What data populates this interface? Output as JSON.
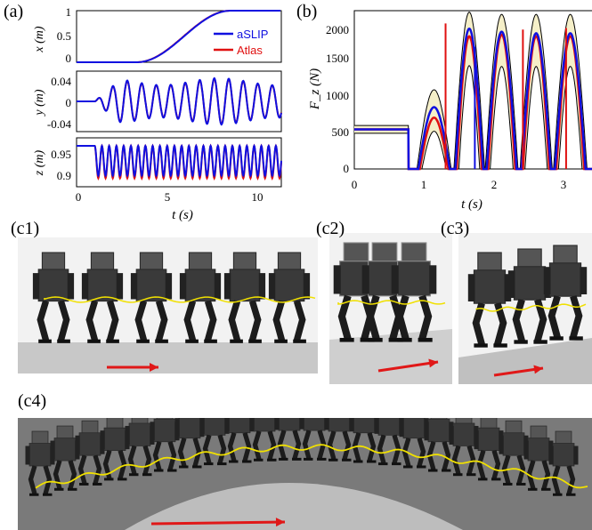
{
  "labels": {
    "a": "(a)",
    "b": "(b)",
    "c1": "(c1)",
    "c2": "(c2)",
    "c3": "(c3)",
    "c4": "(c4)"
  },
  "colors": {
    "aslip": "#1010e0",
    "atlas": "#e01010",
    "band": "#f5efc8",
    "trajectory": "#f0e000",
    "arrow": "#e01818"
  },
  "chart_data": [
    {
      "type": "line",
      "panel": "a-x",
      "ylabel": "x (m)",
      "ylim": [
        0,
        1
      ],
      "yticks": [
        "0",
        "0.5",
        "1"
      ],
      "xlim": [
        0,
        11.3
      ],
      "series": [
        {
          "name": "aSLIP",
          "x": [
            0,
            3.3,
            4,
            5,
            6,
            7,
            8,
            9,
            11.3
          ],
          "values": [
            0,
            0,
            0.12,
            0.42,
            0.72,
            0.92,
            0.99,
            1.0,
            1.0
          ]
        },
        {
          "name": "Atlas",
          "x": [
            0,
            3.3,
            4,
            5,
            6,
            7,
            8,
            9,
            11.3
          ],
          "values": [
            0,
            0,
            0.11,
            0.41,
            0.71,
            0.91,
            0.99,
            1.0,
            1.0
          ]
        }
      ],
      "legend": [
        "aSLIP",
        "Atlas"
      ]
    },
    {
      "type": "line",
      "panel": "a-y",
      "ylabel": "y (m)",
      "ylim": [
        -0.05,
        0.06
      ],
      "yticks": [
        "0.04",
        "0",
        "-0.04"
      ],
      "xlim": [
        0,
        11.3
      ],
      "oscillation": {
        "start": 1.0,
        "amplitude": 0.045,
        "period": 0.8
      }
    },
    {
      "type": "line",
      "panel": "a-z",
      "ylabel": "z (m)",
      "ylim": [
        0.88,
        0.99
      ],
      "yticks": [
        "0.95",
        "0.9"
      ],
      "xlim": [
        0,
        11.3
      ],
      "xticks": [
        "0",
        "5",
        "10"
      ],
      "xlabel": "t (s)",
      "base": 0.972,
      "oscillation": {
        "start": 1.0,
        "low": 0.905,
        "period": 0.4
      }
    },
    {
      "type": "line",
      "panel": "b",
      "ylabel": "F_z (N)",
      "ylim": [
        0,
        2100
      ],
      "yticks": [
        "0",
        "500",
        "1000",
        "1500",
        "2000"
      ],
      "xlim": [
        0,
        3.45
      ],
      "xticks": [
        "0",
        "1",
        "2",
        "3"
      ],
      "xlabel": "t (s)",
      "stance_windows": [
        [
          0.92,
          1.37
        ],
        [
          1.45,
          1.85
        ],
        [
          1.9,
          2.33
        ],
        [
          2.4,
          2.82
        ],
        [
          2.88,
          3.32
        ]
      ],
      "aslip_peaks": [
        820,
        1860,
        1820,
        1800,
        1800
      ],
      "atlas_peaks": [
        680,
        1760,
        1780,
        1760,
        1760
      ],
      "band_upper_peaks": [
        1050,
        2080,
        2050,
        2050,
        2050
      ],
      "band_lower_peaks": [
        500,
        1370,
        1360,
        1360,
        1360
      ],
      "initial_level": 525
    }
  ]
}
